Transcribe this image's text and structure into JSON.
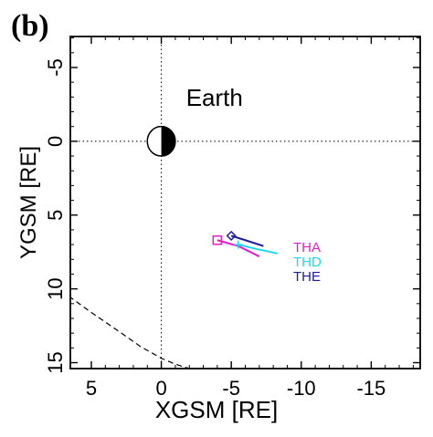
{
  "panel_label": "(b)",
  "chart_data": {
    "type": "scatter",
    "title": "",
    "xlabel": "XGSM [RE]",
    "ylabel": "YGSM [RE]",
    "xlim": [
      6.5,
      -18.5
    ],
    "ylim": [
      -7.1,
      15.4
    ],
    "x_ticks": [
      5,
      0,
      -5,
      -10,
      -15
    ],
    "x_tick_labels": [
      "5",
      "0",
      "-5",
      "-10",
      "-15"
    ],
    "y_ticks": [
      -5,
      0,
      5,
      10,
      15
    ],
    "y_tick_labels": [
      "-5",
      "0",
      "5",
      "10",
      "15"
    ],
    "x_inverted": true,
    "y_inverted": true,
    "grid": false,
    "reference_lines": [
      {
        "axis": "x",
        "value": 0,
        "style": "dotted"
      },
      {
        "axis": "y",
        "value": 0,
        "style": "dotted"
      }
    ],
    "annotations": [
      {
        "text": "Earth",
        "x": -3.8,
        "y": -2.4
      }
    ],
    "earth": {
      "x": 0,
      "y": 0,
      "radius": 1
    },
    "boundary": {
      "style": "dashed",
      "color": "#000000",
      "x": [
        6.6,
        5.0,
        3.0,
        1.5,
        0.0,
        -1.0,
        -2.0
      ],
      "y": [
        10.5,
        11.6,
        12.9,
        13.9,
        14.7,
        15.1,
        15.4
      ]
    },
    "series": [
      {
        "name": "THA",
        "color": "#e020c8",
        "marker": "square",
        "start": [
          -4.0,
          6.7
        ],
        "x": [
          -4.0,
          -5.5,
          -7.0
        ],
        "y": [
          6.7,
          7.1,
          7.8
        ]
      },
      {
        "name": "THD",
        "color": "#20d8e8",
        "marker": "plus",
        "start": [
          -5.5,
          7.0
        ],
        "x": [
          -5.5,
          -6.8,
          -8.3
        ],
        "y": [
          7.0,
          7.3,
          7.6
        ]
      },
      {
        "name": "THE",
        "color": "#1c1c9c",
        "marker": "diamond",
        "start": [
          -5.0,
          6.4
        ],
        "x": [
          -5.0,
          -6.0,
          -7.3
        ],
        "y": [
          6.4,
          6.7,
          7.1
        ]
      }
    ],
    "legend": {
      "position": "right",
      "entries": [
        "THA",
        "THD",
        "THE"
      ]
    }
  }
}
